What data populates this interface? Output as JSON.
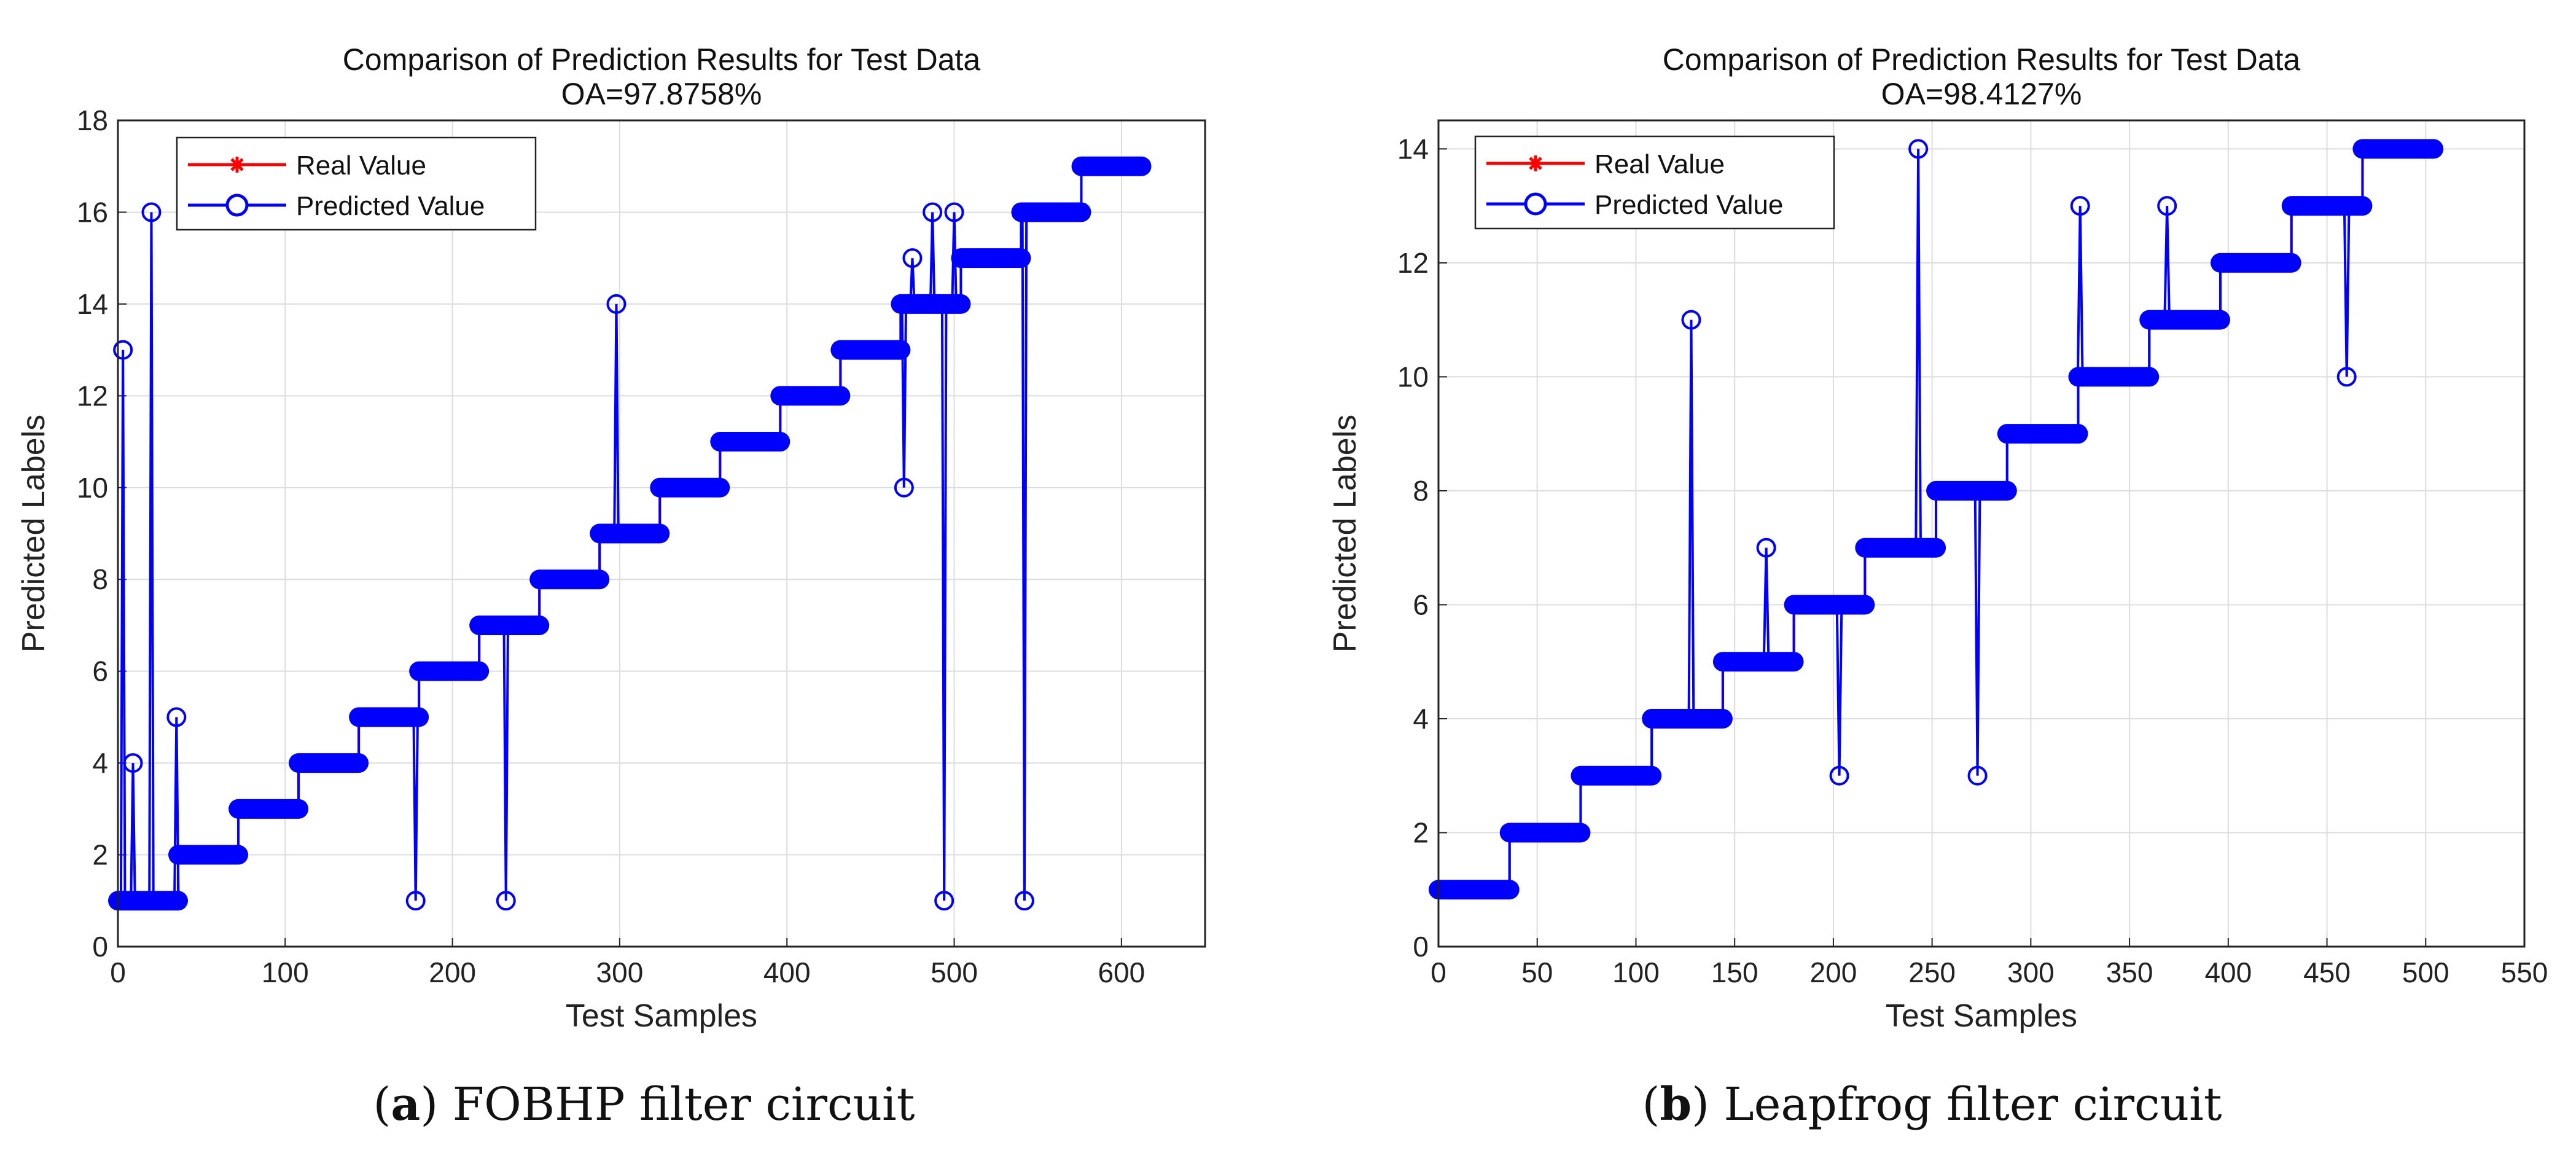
{
  "chart_data": [
    {
      "type": "line",
      "title": "Comparison of Prediction Results for Test Data",
      "subtitle": "OA=97.8758%",
      "xlabel": "Test Samples",
      "ylabel": "Predicted Labels",
      "xlim": [
        0,
        650
      ],
      "ylim": [
        0,
        18
      ],
      "xticks": [
        0,
        100,
        200,
        300,
        400,
        500,
        600
      ],
      "yticks": [
        0,
        2,
        4,
        6,
        8,
        10,
        12,
        14,
        16,
        18
      ],
      "grid": true,
      "legend_position": "top-left",
      "caption_letter": "a",
      "caption_text": "FOBHP filter circuit",
      "class_steps": [
        {
          "label": 1,
          "start": 0,
          "end": 36
        },
        {
          "label": 2,
          "start": 36,
          "end": 72
        },
        {
          "label": 3,
          "start": 72,
          "end": 108
        },
        {
          "label": 4,
          "start": 108,
          "end": 144
        },
        {
          "label": 5,
          "start": 144,
          "end": 180
        },
        {
          "label": 6,
          "start": 180,
          "end": 216
        },
        {
          "label": 7,
          "start": 216,
          "end": 252
        },
        {
          "label": 8,
          "start": 252,
          "end": 288
        },
        {
          "label": 9,
          "start": 288,
          "end": 324
        },
        {
          "label": 10,
          "start": 324,
          "end": 360
        },
        {
          "label": 11,
          "start": 360,
          "end": 396
        },
        {
          "label": 12,
          "start": 396,
          "end": 432
        },
        {
          "label": 13,
          "start": 432,
          "end": 468
        },
        {
          "label": 14,
          "start": 468,
          "end": 504
        },
        {
          "label": 15,
          "start": 504,
          "end": 540
        },
        {
          "label": 16,
          "start": 540,
          "end": 576
        },
        {
          "label": 17,
          "start": 576,
          "end": 612
        }
      ],
      "misclassified": [
        {
          "x": 3,
          "predicted": 13
        },
        {
          "x": 9,
          "predicted": 4
        },
        {
          "x": 20,
          "predicted": 16
        },
        {
          "x": 35,
          "predicted": 5
        },
        {
          "x": 178,
          "predicted": 1
        },
        {
          "x": 232,
          "predicted": 1
        },
        {
          "x": 298,
          "predicted": 14
        },
        {
          "x": 470,
          "predicted": 10
        },
        {
          "x": 475,
          "predicted": 15
        },
        {
          "x": 487,
          "predicted": 16
        },
        {
          "x": 494,
          "predicted": 1
        },
        {
          "x": 500,
          "predicted": 16
        },
        {
          "x": 542,
          "predicted": 1
        }
      ],
      "series": [
        {
          "name": "Real Value",
          "color": "#ff0000",
          "marker": "asterisk"
        },
        {
          "name": "Predicted Value",
          "color": "#0000ff",
          "marker": "circle"
        }
      ]
    },
    {
      "type": "line",
      "title": "Comparison of Prediction Results for Test Data",
      "subtitle": "OA=98.4127%",
      "xlabel": "Test Samples",
      "ylabel": "Predicted Labels",
      "xlim": [
        0,
        550
      ],
      "ylim": [
        0,
        14.5
      ],
      "xticks": [
        0,
        50,
        100,
        150,
        200,
        250,
        300,
        350,
        400,
        450,
        500,
        550
      ],
      "yticks": [
        0,
        2,
        4,
        6,
        8,
        10,
        12,
        14
      ],
      "grid": true,
      "legend_position": "top-left",
      "caption_letter": "b",
      "caption_text": "Leapfrog filter circuit",
      "class_steps": [
        {
          "label": 1,
          "start": 0,
          "end": 36
        },
        {
          "label": 2,
          "start": 36,
          "end": 72
        },
        {
          "label": 3,
          "start": 72,
          "end": 108
        },
        {
          "label": 4,
          "start": 108,
          "end": 144
        },
        {
          "label": 5,
          "start": 144,
          "end": 180
        },
        {
          "label": 6,
          "start": 180,
          "end": 216
        },
        {
          "label": 7,
          "start": 216,
          "end": 252
        },
        {
          "label": 8,
          "start": 252,
          "end": 288
        },
        {
          "label": 9,
          "start": 288,
          "end": 324
        },
        {
          "label": 10,
          "start": 324,
          "end": 360
        },
        {
          "label": 11,
          "start": 360,
          "end": 396
        },
        {
          "label": 12,
          "start": 396,
          "end": 432
        },
        {
          "label": 13,
          "start": 432,
          "end": 468
        },
        {
          "label": 14,
          "start": 468,
          "end": 504
        }
      ],
      "misclassified": [
        {
          "x": 128,
          "predicted": 11
        },
        {
          "x": 166,
          "predicted": 7
        },
        {
          "x": 203,
          "predicted": 3
        },
        {
          "x": 243,
          "predicted": 14
        },
        {
          "x": 273,
          "predicted": 3
        },
        {
          "x": 325,
          "predicted": 13
        },
        {
          "x": 369,
          "predicted": 13
        },
        {
          "x": 460,
          "predicted": 10
        }
      ],
      "series": [
        {
          "name": "Real Value",
          "color": "#ff0000",
          "marker": "asterisk"
        },
        {
          "name": "Predicted Value",
          "color": "#0000ff",
          "marker": "circle"
        }
      ]
    }
  ]
}
